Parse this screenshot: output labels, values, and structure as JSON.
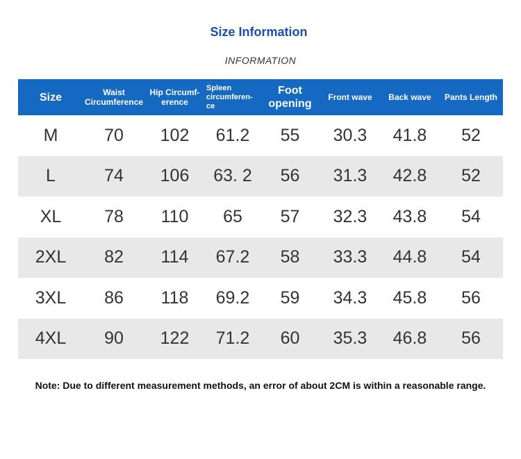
{
  "header": {
    "title": "Size Information",
    "subtitle": "INFORMATION"
  },
  "table": {
    "columns": [
      [
        "Size"
      ],
      [
        "Waist",
        "Circumference"
      ],
      [
        "Hip Circumf-",
        "erence"
      ],
      [
        "Spleen",
        "circumferen-",
        "ce"
      ],
      [
        "Foot",
        "opening"
      ],
      [
        "Front wave"
      ],
      [
        "Back wave"
      ],
      [
        "Pants Length"
      ]
    ],
    "rows": [
      [
        "M",
        "70",
        "102",
        "61.2",
        "55",
        "30.3",
        "41.8",
        "52"
      ],
      [
        "L",
        "74",
        "106",
        "63. 2",
        "56",
        "31.3",
        "42.8",
        "52"
      ],
      [
        "XL",
        "78",
        "110",
        "65",
        "57",
        "32.3",
        "43.8",
        "54"
      ],
      [
        "2XL",
        "82",
        "114",
        "67.2",
        "58",
        "33.3",
        "44.8",
        "54"
      ],
      [
        "3XL",
        "86",
        "118",
        "69.2",
        "59",
        "34.3",
        "45.8",
        "56"
      ],
      [
        "4XL",
        "90",
        "122",
        "71.2",
        "60",
        "35.3",
        "46.8",
        "56"
      ]
    ]
  },
  "note": "Note: Due to different measurement methods, an error of about 2CM is within a reasonable range."
}
